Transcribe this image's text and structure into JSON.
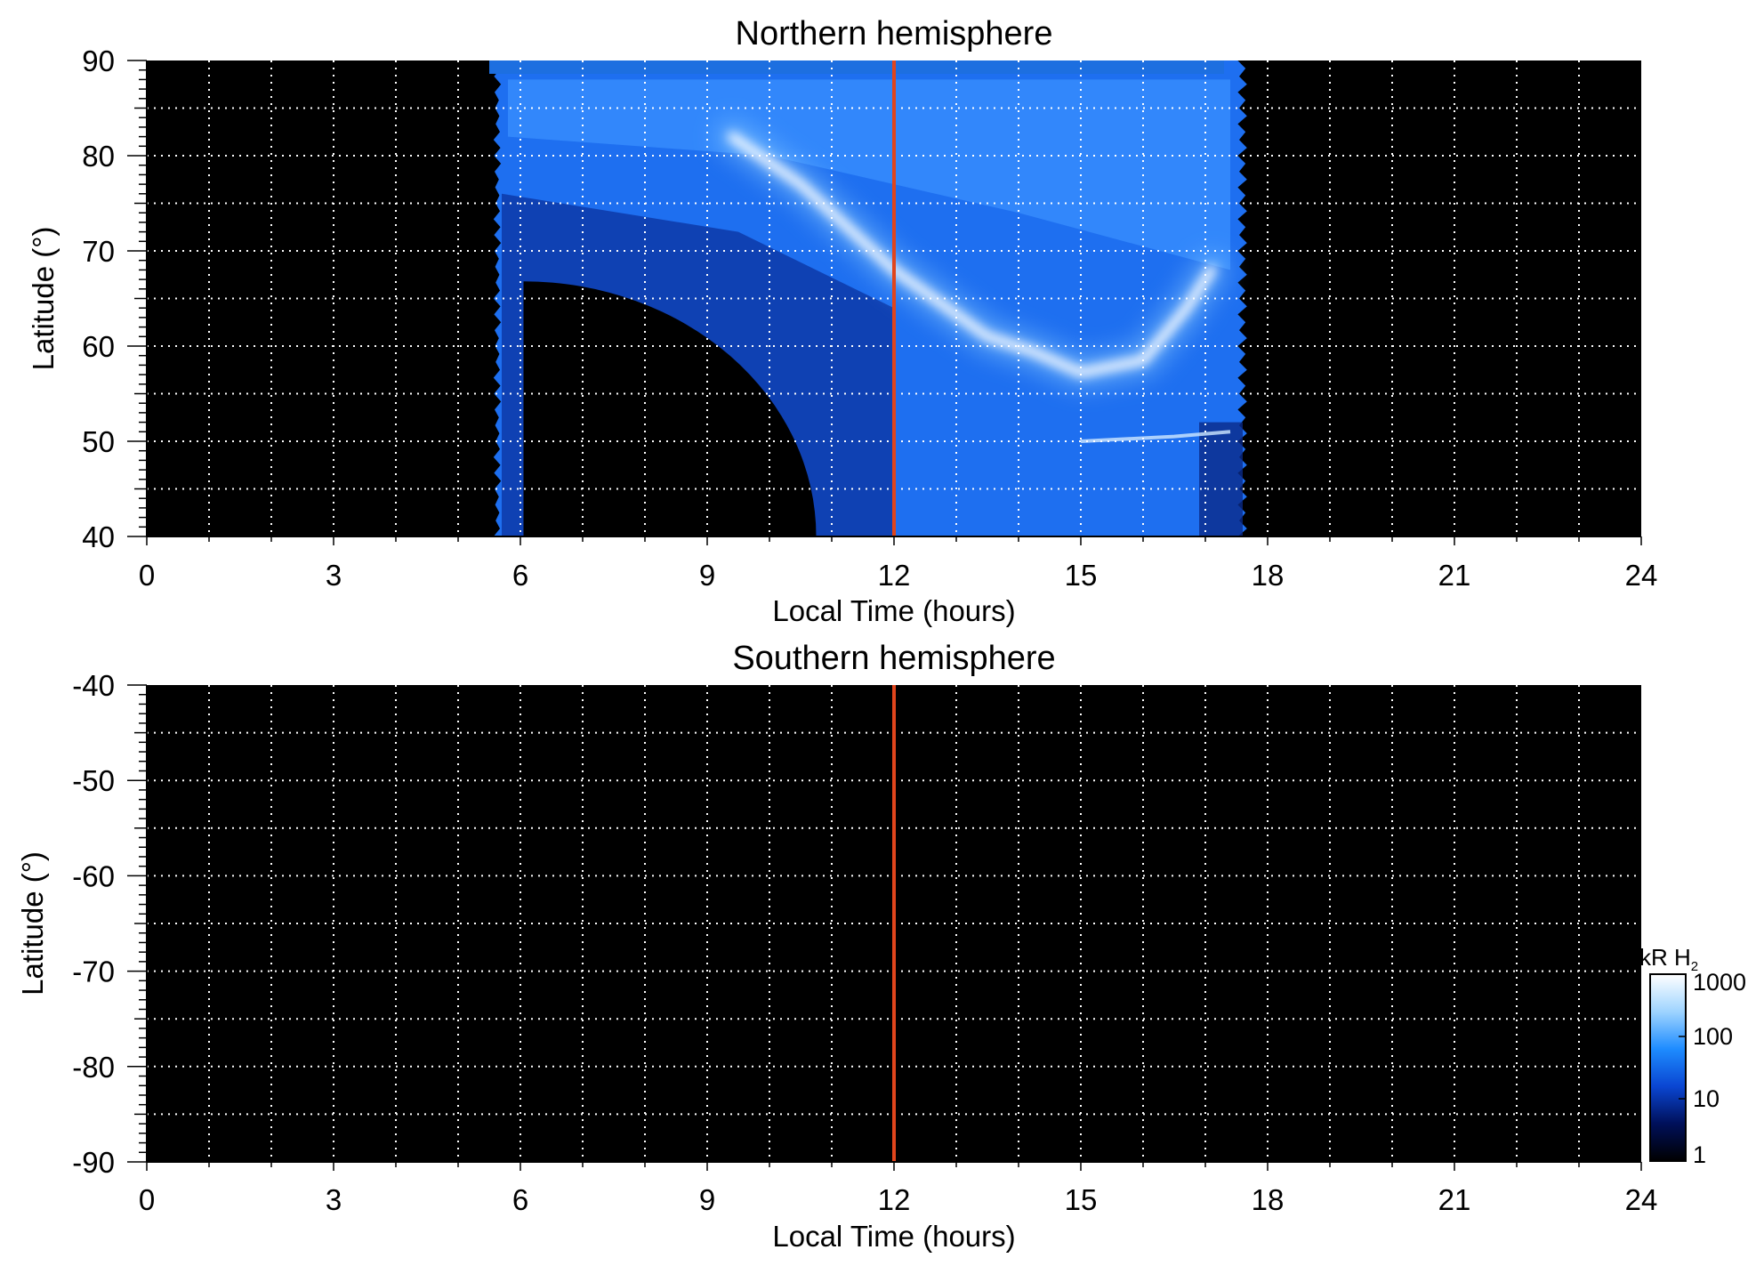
{
  "chart_data": [
    {
      "type": "heatmap",
      "title": "Northern hemisphere",
      "xlabel": "Local Time (hours)",
      "ylabel": "Latitude (°)",
      "xlim": [
        0,
        24
      ],
      "ylim": [
        40,
        90
      ],
      "x_ticks": [
        0,
        3,
        6,
        9,
        12,
        15,
        18,
        21,
        24
      ],
      "y_ticks": [
        40,
        50,
        60,
        70,
        80,
        90
      ],
      "grid": true,
      "marker_line_local_time": 12,
      "marker_line_color": "#e0451c",
      "background_color": "#000000",
      "coverage": {
        "local_time_range": [
          5.5,
          17.6
        ],
        "latitude_range": [
          40,
          90
        ]
      },
      "features": [
        {
          "kind": "bright-arc",
          "points": [
            [
              9.4,
              82
            ],
            [
              10.5,
              77
            ],
            [
              12,
              68
            ],
            [
              13.5,
              61
            ],
            [
              14.2,
              59.5
            ],
            [
              15,
              57.2
            ],
            [
              16,
              58.5
            ],
            [
              16.7,
              64
            ],
            [
              17.1,
              68
            ]
          ]
        },
        {
          "kind": "faint-band",
          "points": [
            [
              15,
              50
            ],
            [
              16.5,
              50.5
            ],
            [
              17.4,
              51
            ]
          ]
        }
      ]
    },
    {
      "type": "heatmap",
      "title": "Southern hemisphere",
      "xlabel": "Local Time (hours)",
      "ylabel": "Latitude (°)",
      "xlim": [
        0,
        24
      ],
      "ylim": [
        -90,
        -40
      ],
      "x_ticks": [
        0,
        3,
        6,
        9,
        12,
        15,
        18,
        21,
        24
      ],
      "y_ticks": [
        -40,
        -50,
        -60,
        -70,
        -80,
        -90
      ],
      "grid": true,
      "marker_line_local_time": 12,
      "marker_line_color": "#e0451c",
      "background_color": "#000000",
      "coverage": null
    }
  ],
  "colorbar": {
    "unit_label": "kR H",
    "unit_subscript": "2",
    "scale": "log",
    "range": [
      1,
      1000
    ],
    "ticks": [
      "1000",
      "100",
      "10",
      "1"
    ],
    "colors": [
      "#000000",
      "#00105a",
      "#0a46d2",
      "#1e8cff",
      "#9fd4ff",
      "#ffffff"
    ]
  }
}
